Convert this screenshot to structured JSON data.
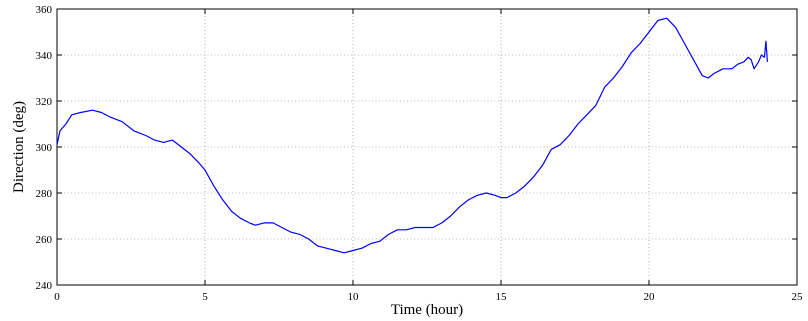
{
  "chart_data": {
    "type": "line",
    "title": "",
    "xlabel": "Time (hour)",
    "ylabel": "Direction (deg)",
    "xlim": [
      0,
      25
    ],
    "ylim": [
      240,
      360
    ],
    "xticks": [
      0,
      5,
      10,
      15,
      20,
      25
    ],
    "yticks": [
      240,
      260,
      280,
      300,
      320,
      340,
      360
    ],
    "grid": true,
    "legend": "none",
    "series": [
      {
        "color": "#0000ff",
        "x": [
          0,
          0.1,
          0.3,
          0.5,
          0.8,
          1.2,
          1.5,
          1.8,
          2.2,
          2.6,
          3.0,
          3.3,
          3.6,
          3.9,
          4.2,
          4.5,
          4.8,
          5.0,
          5.3,
          5.6,
          5.9,
          6.2,
          6.5,
          6.7,
          7.0,
          7.3,
          7.6,
          7.9,
          8.2,
          8.5,
          8.8,
          9.1,
          9.4,
          9.7,
          10.0,
          10.3,
          10.6,
          10.9,
          11.2,
          11.5,
          11.8,
          12.1,
          12.4,
          12.7,
          13.0,
          13.3,
          13.6,
          13.9,
          14.2,
          14.5,
          14.8,
          15.0,
          15.2,
          15.5,
          15.8,
          16.1,
          16.4,
          16.7,
          17.0,
          17.3,
          17.6,
          17.9,
          18.2,
          18.5,
          18.8,
          19.1,
          19.4,
          19.7,
          20.0,
          20.3,
          20.6,
          20.9,
          21.2,
          21.5,
          21.8,
          22.0,
          22.2,
          22.5,
          22.8,
          23.0,
          23.2,
          23.35,
          23.45,
          23.55,
          23.7,
          23.8,
          23.9,
          23.95,
          24.0
        ],
        "y": [
          301,
          307,
          310,
          314,
          315,
          316,
          315,
          313,
          311,
          307,
          305,
          303,
          302,
          303,
          300,
          297,
          293,
          290,
          283,
          277,
          272,
          269,
          267,
          266,
          267,
          267,
          265,
          263,
          262,
          260,
          257,
          256,
          255,
          254,
          255,
          256,
          258,
          259,
          262,
          264,
          264,
          265,
          265,
          265,
          267,
          270,
          274,
          277,
          279,
          280,
          279,
          278,
          278,
          280,
          283,
          287,
          292,
          299,
          301,
          305,
          310,
          314,
          318,
          326,
          330,
          335,
          341,
          345,
          350,
          355,
          356,
          352,
          345,
          338,
          331,
          330,
          332,
          334,
          334,
          336,
          337,
          339,
          338,
          334,
          337,
          340,
          339,
          346,
          337
        ]
      }
    ]
  }
}
